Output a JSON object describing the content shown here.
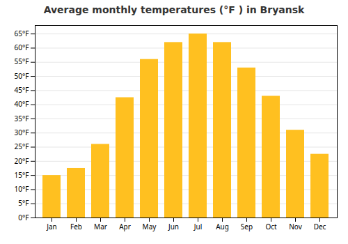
{
  "chart_data": {
    "type": "bar",
    "title": "Average monthly temperatures (°F ) in Bryansk",
    "categories": [
      "Jan",
      "Feb",
      "Mar",
      "Apr",
      "May",
      "Jun",
      "Jul",
      "Aug",
      "Sep",
      "Oct",
      "Nov",
      "Dec"
    ],
    "values": [
      15,
      17.5,
      26,
      42.5,
      56,
      62,
      65,
      62,
      53,
      43,
      31,
      22.5
    ],
    "color": "#FFC020",
    "ylim": [
      0,
      68
    ],
    "yticks": [
      {
        "value": 0,
        "label": "0°F"
      },
      {
        "value": 5,
        "label": "5°F"
      },
      {
        "value": 10,
        "label": "10°F"
      },
      {
        "value": 15,
        "label": "15°F"
      },
      {
        "value": 20,
        "label": "20°F"
      },
      {
        "value": 25,
        "label": "25°F"
      },
      {
        "value": 30,
        "label": "30°F"
      },
      {
        "value": 35,
        "label": "35°F"
      },
      {
        "value": 40,
        "label": "40°F"
      },
      {
        "value": 45,
        "label": "45°F"
      },
      {
        "value": 50,
        "label": "50°F"
      },
      {
        "value": 55,
        "label": "55°F"
      },
      {
        "value": 60,
        "label": "60°F"
      },
      {
        "value": 65,
        "label": "65°F"
      }
    ],
    "grid": true
  }
}
